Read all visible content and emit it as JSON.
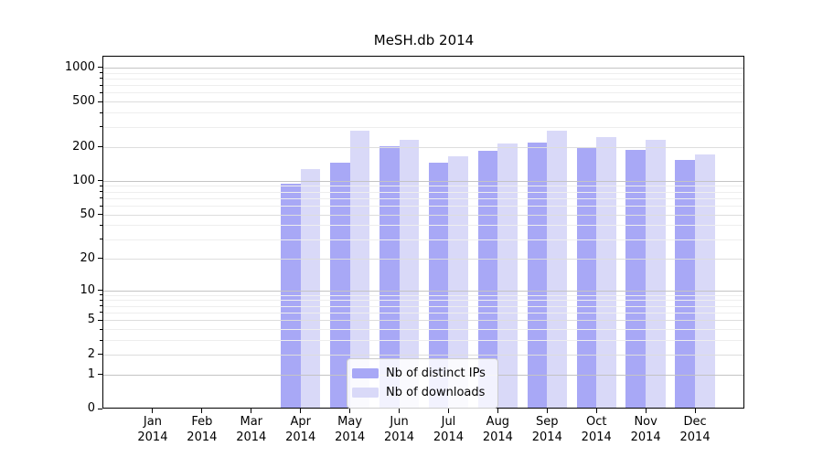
{
  "figure": {
    "background": "#ffffff"
  },
  "chart_data": {
    "type": "bar",
    "title": "MeSH.db 2014",
    "x_categories": [
      "Jan",
      "Feb",
      "Mar",
      "Apr",
      "May",
      "Jun",
      "Jul",
      "Aug",
      "Sep",
      "Oct",
      "Nov",
      "Dec"
    ],
    "x_year": "2014",
    "y_scale": "symlog (position proportional to log(1+value))",
    "y_tick_labels": [
      1000,
      500,
      200,
      100,
      50,
      20,
      10,
      5,
      2,
      1,
      0
    ],
    "ylim": [
      0,
      1250
    ],
    "grid": {
      "major": [
        1,
        10,
        100,
        1000
      ],
      "mid": [
        2,
        5,
        20,
        50,
        200,
        500
      ],
      "minor": [
        3,
        4,
        6,
        7,
        8,
        9,
        30,
        40,
        60,
        70,
        80,
        90,
        300,
        400,
        600,
        700,
        800,
        900
      ]
    },
    "legend_position": "lower center",
    "series": [
      {
        "name": "Nb of distinct IPs",
        "color": "#a8a8f6",
        "values": [
          null,
          null,
          null,
          95,
          145,
          203,
          144,
          185,
          218,
          198,
          188,
          153
        ]
      },
      {
        "name": "Nb of downloads",
        "color": "#d9d9f8",
        "values": [
          null,
          null,
          null,
          128,
          278,
          232,
          165,
          214,
          280,
          244,
          230,
          170
        ]
      }
    ]
  },
  "colors": {
    "grid_major": "#c4c4c4",
    "grid_mid": "#dddddd",
    "grid_minor": "#eeeeee",
    "axis_frame": "#000000",
    "legend_border": "#cccccc",
    "text": "#000000"
  }
}
